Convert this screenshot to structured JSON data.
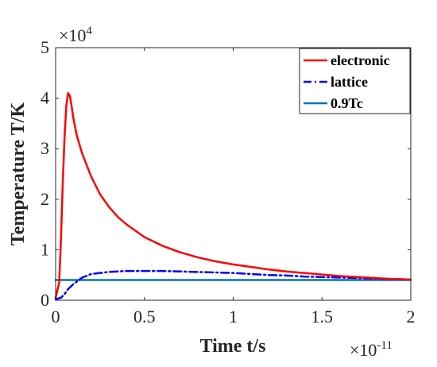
{
  "chart_data": {
    "type": "line",
    "xlabel": "Time t/s",
    "ylabel": "Temperature T/K",
    "x_multiplier": {
      "base": "×10",
      "exponent": "-11"
    },
    "y_multiplier": {
      "base": "×10",
      "exponent": "4"
    },
    "xlim": [
      0,
      2
    ],
    "ylim": [
      0,
      5
    ],
    "x_ticks": [
      0,
      0.5,
      1,
      1.5,
      2
    ],
    "x_tick_labels": [
      "0",
      "0.5",
      "1",
      "1.5",
      "2"
    ],
    "y_ticks": [
      0,
      1,
      2,
      3,
      4,
      5
    ],
    "y_tick_labels": [
      "0",
      "1",
      "2",
      "3",
      "4",
      "5"
    ],
    "grid": false,
    "legend_position": "top-right",
    "series": [
      {
        "name": "electronic",
        "color": "#ff0000",
        "style": "solid",
        "x": [
          0,
          0.02,
          0.03,
          0.04,
          0.05,
          0.06,
          0.07,
          0.08,
          0.09,
          0.1,
          0.12,
          0.15,
          0.2,
          0.25,
          0.3,
          0.35,
          0.4,
          0.5,
          0.6,
          0.7,
          0.8,
          0.9,
          1.0,
          1.1,
          1.2,
          1.3,
          1.4,
          1.5,
          1.6,
          1.7,
          1.8,
          1.9,
          2.0
        ],
        "y": [
          0.05,
          0.35,
          1.2,
          2.3,
          3.2,
          3.85,
          4.1,
          4.05,
          3.85,
          3.6,
          3.25,
          2.9,
          2.45,
          2.1,
          1.85,
          1.65,
          1.5,
          1.25,
          1.08,
          0.95,
          0.85,
          0.77,
          0.71,
          0.66,
          0.61,
          0.57,
          0.54,
          0.51,
          0.48,
          0.46,
          0.44,
          0.42,
          0.41
        ]
      },
      {
        "name": "lattice",
        "color": "#0000ff",
        "style": "dashdot",
        "x": [
          0,
          0.03,
          0.05,
          0.07,
          0.1,
          0.15,
          0.2,
          0.3,
          0.4,
          0.5,
          0.6,
          0.7,
          0.8,
          0.9,
          1.0,
          1.1,
          1.2,
          1.3,
          1.4,
          1.5,
          1.6,
          1.7,
          1.8,
          1.9,
          2.0
        ],
        "y": [
          0.02,
          0.05,
          0.12,
          0.22,
          0.32,
          0.45,
          0.52,
          0.56,
          0.58,
          0.58,
          0.58,
          0.57,
          0.56,
          0.55,
          0.54,
          0.52,
          0.5,
          0.49,
          0.47,
          0.46,
          0.45,
          0.44,
          0.43,
          0.42,
          0.41
        ]
      },
      {
        "name": "0.9Tc",
        "color": "#0072bd",
        "style": "solid",
        "x": [
          0,
          2
        ],
        "y": [
          0.4,
          0.4
        ]
      }
    ]
  }
}
